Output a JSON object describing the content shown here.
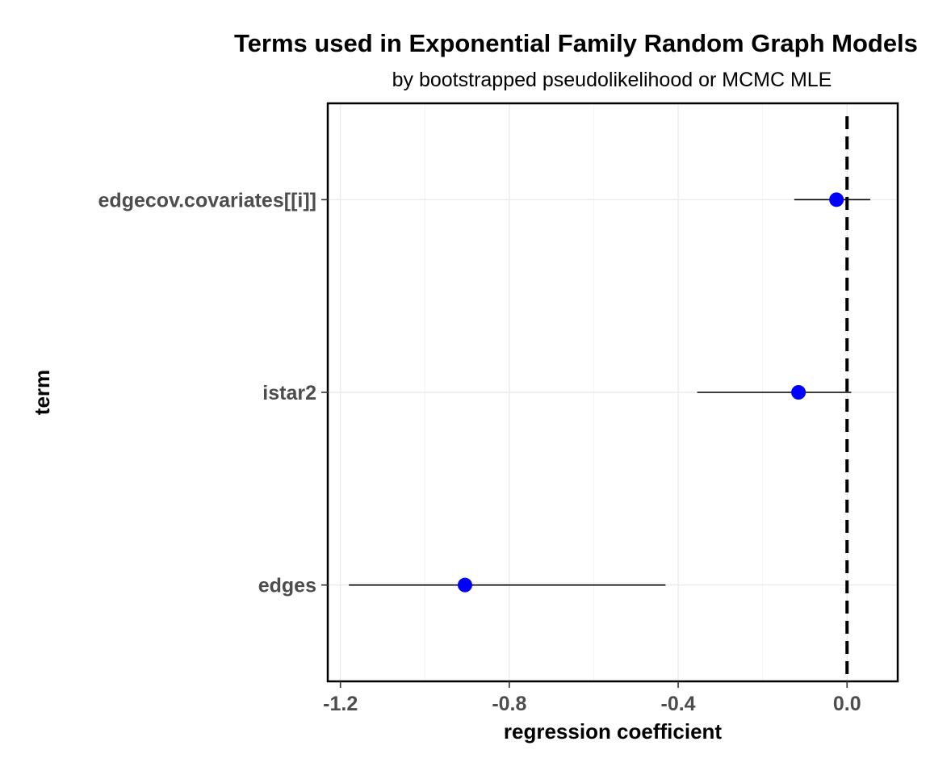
{
  "chart_data": {
    "type": "scatter",
    "title": "Terms used in Exponential Family Random Graph Models",
    "subtitle": "by bootstrapped pseudolikelihood or MCMC MLE",
    "xlabel": "regression coefficient",
    "ylabel": "term",
    "xlim": [
      -1.23,
      0.12
    ],
    "x_ticks": [
      -1.2,
      -0.8,
      -0.4,
      0.0
    ],
    "x_tick_labels": [
      "-1.2",
      "-0.8",
      "-0.4",
      "0.0"
    ],
    "categories": [
      "edgecov.covariates[[i]]",
      "istar2",
      "edges"
    ],
    "points": [
      {
        "term": "edgecov.covariates[[i]]",
        "estimate": -0.025,
        "ci_low": -0.125,
        "ci_high": 0.055
      },
      {
        "term": "istar2",
        "estimate": -0.115,
        "ci_low": -0.355,
        "ci_high": 0.01
      },
      {
        "term": "edges",
        "estimate": -0.905,
        "ci_low": -1.18,
        "ci_high": -0.43
      }
    ],
    "reference_line": {
      "x": 0,
      "style": "dashed"
    },
    "point_color": "#0000ff",
    "grid": true,
    "legend": "none"
  }
}
